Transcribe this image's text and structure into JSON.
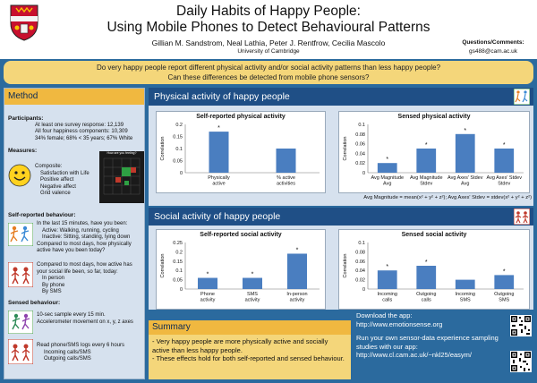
{
  "header": {
    "title_line1": "Daily Habits of Happy People:",
    "title_line2": "Using Mobile Phones to Detect Behavioural Patterns",
    "authors": "Gillian M. Sandstrom, Neal Lathia, Peter J. Rentfrow, Cecilia Mascolo",
    "affiliation": "University of Cambridge",
    "questions_label": "Questions/Comments:",
    "questions_email": "gs488@cam.ac.uk"
  },
  "question_bar": {
    "line1": "Do very happy people report different physical activity and/or social activity patterns than less happy people?",
    "line2": "Can these differences be detected from mobile phone sensors?"
  },
  "method": {
    "heading": "Method",
    "participants_label": "Participants:",
    "participants_lines": [
      "At least one survey response: 12,139",
      "All four happiness components: 10,309",
      "34% female; 68% < 35 years; 67% White"
    ],
    "measures_label": "Measures:",
    "composite_lines": [
      "Composite:",
      "Satisfaction with Life",
      "Positive affect",
      "Negative affect",
      "Grid valence"
    ],
    "grid_title": "How are you feeling?",
    "self_reported_label": "Self-reported behaviour:",
    "physical_lines": [
      "In the last 15 minutes, have you been:",
      "Active: Walking, running, cycling",
      "Inactive: Sitting, standing, lying down",
      "Compared to most days, how physically",
      "active have you been today?"
    ],
    "social_lines": [
      "Compared to most days, how active has",
      "your social life been, so far, today:",
      "In person",
      "By phone",
      "By SMS"
    ],
    "sensed_label": "Sensed behaviour:",
    "sensed_accel_lines": [
      "10-sec sample every 15 min.",
      "Accelerometer movement on x, y, z axes"
    ],
    "sensed_phone_lines": [
      "Read phone/SMS logs every 6 hours",
      "Incoming calls/SMS",
      "Outgoing calls/SMS"
    ]
  },
  "physical_section": {
    "heading": "Physical activity of happy people",
    "formula_line1": "Avg Magnitude = mean(x² + y² + z²); Avg Axes' Stdev = stdev(x² + y² + z²)"
  },
  "social_section": {
    "heading": "Social activity of happy people"
  },
  "summary": {
    "heading": "Summary",
    "lines": [
      "- Very happy people are more physically active and socially active than less happy people.",
      "- These effects hold for both self-reported and sensed behaviour."
    ]
  },
  "download": {
    "line1": "Download the app:",
    "url1": "http://www.emotionsense.org",
    "line2": "Run your own sensor-data experience sampling studies with our app:",
    "url2": "http://www.cl.cam.ac.uk/~nkl25/easym/"
  },
  "colors": {
    "bar": "#4a7ec0",
    "panel_head": "#f0b840",
    "section_head": "#1f4f86",
    "background": "#2b6a9e"
  },
  "chart_data": [
    {
      "id": "phys_self",
      "type": "bar",
      "title": "Self-reported physical activity",
      "ylabel": "Correlation",
      "categories": [
        [
          "Physically",
          "active"
        ],
        [
          "% active",
          "activities"
        ]
      ],
      "values": [
        0.17,
        0.1
      ],
      "significant": [
        true,
        false
      ],
      "yticks": [
        0,
        0.05,
        0.1,
        0.15,
        0.2
      ],
      "ylim": [
        0,
        0.2
      ]
    },
    {
      "id": "phys_sensed",
      "type": "bar",
      "title": "Sensed physical activity",
      "ylabel": "Correlation",
      "categories": [
        [
          "Avg Magnitude",
          "Avg"
        ],
        [
          "Avg Magnitude",
          "Stdev"
        ],
        [
          "Avg Axes' Stdev",
          "Avg"
        ],
        [
          "Avg Axes' Stdev",
          "Stdev"
        ]
      ],
      "values": [
        0.02,
        0.05,
        0.08,
        0.05
      ],
      "significant": [
        true,
        true,
        true,
        true
      ],
      "yticks": [
        0,
        0.02,
        0.04,
        0.06,
        0.08,
        0.1
      ],
      "ylim": [
        0,
        0.1
      ]
    },
    {
      "id": "soc_self",
      "type": "bar",
      "title": "Self-reported social activity",
      "ylabel": "Correlation",
      "categories": [
        [
          "Phone",
          "activity"
        ],
        [
          "SMS",
          "activity"
        ],
        [
          "In-person",
          "activity"
        ]
      ],
      "values": [
        0.06,
        0.06,
        0.19
      ],
      "significant": [
        true,
        true,
        true
      ],
      "yticks": [
        0,
        0.05,
        0.1,
        0.15,
        0.2,
        0.25
      ],
      "ylim": [
        0,
        0.25
      ]
    },
    {
      "id": "soc_sensed",
      "type": "bar",
      "title": "Sensed social activity",
      "ylabel": "Correlation",
      "categories": [
        [
          "Incoming",
          "calls"
        ],
        [
          "Outgoing",
          "calls"
        ],
        [
          "Incoming",
          "SMS"
        ],
        [
          "Outgoing",
          "SMS"
        ]
      ],
      "values": [
        0.04,
        0.05,
        0.02,
        0.03
      ],
      "significant": [
        true,
        true,
        false,
        true
      ],
      "yticks": [
        0,
        0.02,
        0.04,
        0.06,
        0.08,
        0.1
      ],
      "ylim": [
        0,
        0.1
      ]
    }
  ]
}
